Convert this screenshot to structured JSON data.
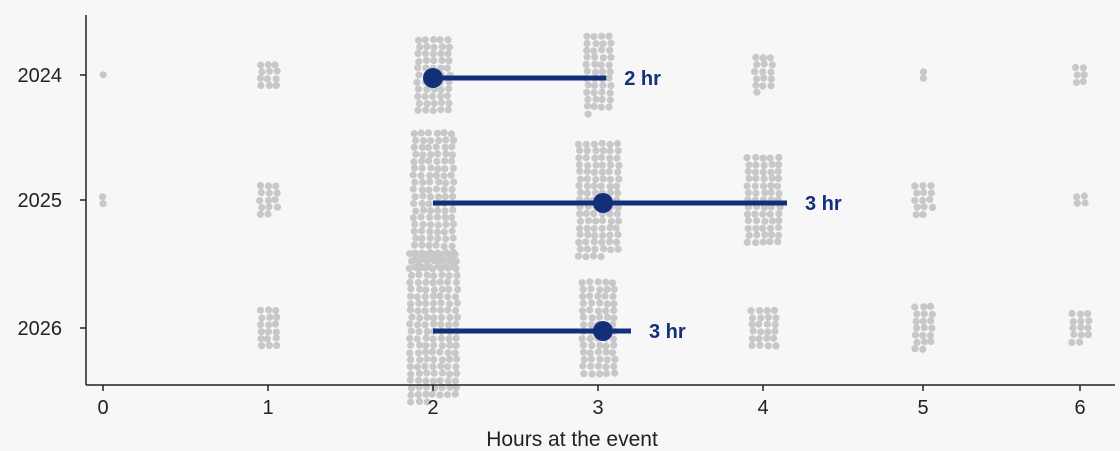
{
  "chart_data": {
    "type": "scatter",
    "subtype": "beeswarm-with-range-line",
    "xlabel": "Hours at the event",
    "ylabel": "",
    "xlim": [
      0,
      6
    ],
    "x_ticks": [
      "0",
      "1",
      "2",
      "3",
      "4",
      "5",
      "6"
    ],
    "categories": [
      "2024",
      "2025",
      "2026"
    ],
    "grid": false,
    "colors": {
      "dots": "#c8c8c8",
      "accent": "#12307a",
      "axis": "#222222",
      "background": "#f7f7f7"
    },
    "clusters": [
      {
        "year": "2024",
        "counts": [
          1,
          12,
          55,
          45,
          16,
          2,
          6
        ]
      },
      {
        "year": "2025",
        "counts": [
          2,
          14,
          120,
          100,
          65,
          14,
          4
        ]
      },
      {
        "year": "2026",
        "counts": [
          0,
          18,
          150,
          70,
          24,
          20,
          14
        ]
      }
    ],
    "series": [
      {
        "year": "2024",
        "point": 2.0,
        "range": [
          2.0,
          3.05
        ],
        "label": "2 hr"
      },
      {
        "year": "2025",
        "point": 3.03,
        "range": [
          2.0,
          4.15
        ],
        "label": "3 hr"
      },
      {
        "year": "2026",
        "point": 3.03,
        "range": [
          2.0,
          3.2
        ],
        "label": "3 hr"
      }
    ]
  }
}
